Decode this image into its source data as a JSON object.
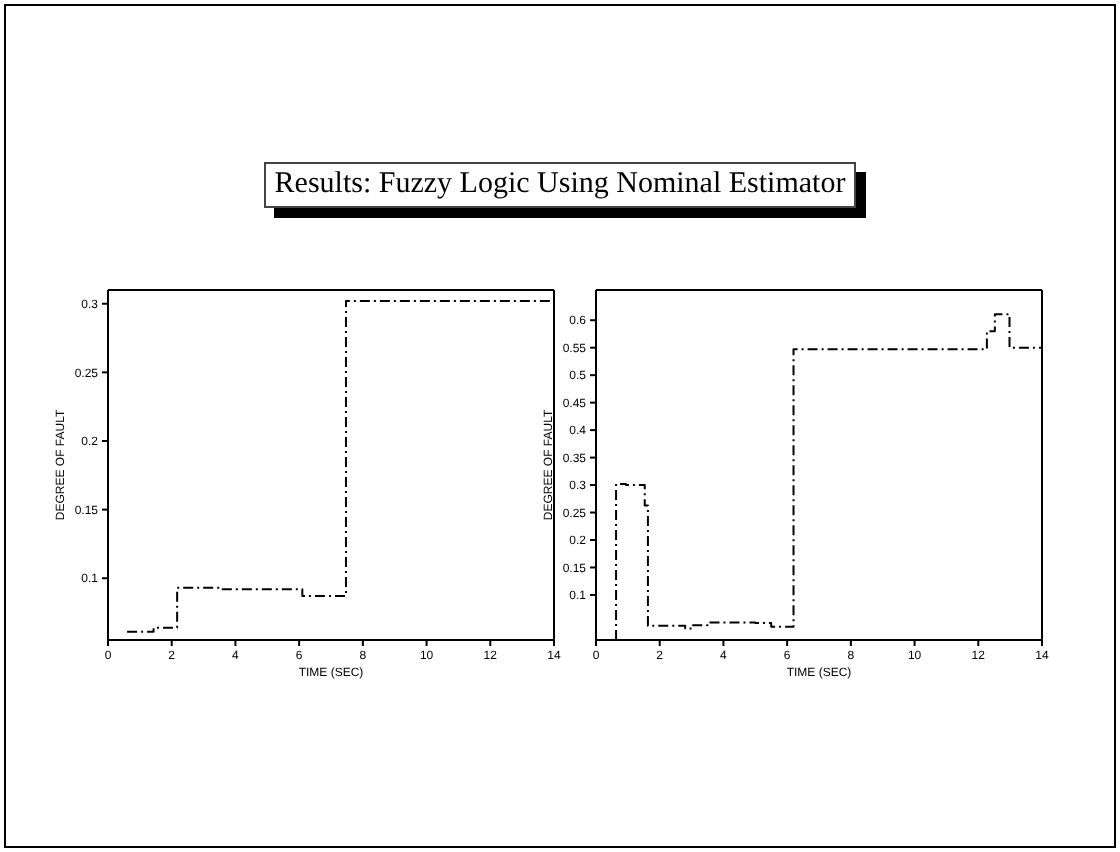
{
  "chart_data": [
    {
      "type": "step",
      "title": "Results: Fuzzy Logic Using Nominal Estimator",
      "xlabel": "TIME (SEC)",
      "ylabel": "DEGREE OF FAULT",
      "xlim": [
        0,
        14
      ],
      "xticks": [
        0,
        2,
        4,
        6,
        8,
        10,
        12,
        14
      ],
      "ylim": [
        0.055,
        0.31
      ],
      "yticks": [
        0.1,
        0.15,
        0.2,
        0.25,
        0.3
      ],
      "line_style": "dashed",
      "marker": "none",
      "series": [
        {
          "color": "#000000",
          "x": [
            0.6,
            1.43,
            2.17,
            3.5,
            6.1,
            7.47,
            14
          ],
          "values": [
            0.061,
            0.064,
            0.093,
            0.092,
            0.087,
            0.302,
            0.302
          ]
        }
      ]
    },
    {
      "type": "step",
      "xlabel": "TIME (SEC)",
      "ylabel": "DEGREE OF FAULT",
      "xlim": [
        0,
        14
      ],
      "xticks": [
        0,
        2,
        4,
        6,
        8,
        10,
        12,
        14
      ],
      "ylim": [
        0.018,
        0.655
      ],
      "yticks": [
        0.1,
        0.15,
        0.2,
        0.25,
        0.3,
        0.35,
        0.4,
        0.45,
        0.5,
        0.55,
        0.6
      ],
      "line_style": "dashed",
      "marker": "none",
      "series": [
        {
          "color": "#000000",
          "x": [
            0.63,
            0.63,
            0.94,
            1.53,
            1.63,
            2.8,
            3.0,
            3.5,
            5.0,
            5.5,
            6.2,
            12.27,
            12.52,
            12.98,
            14
          ],
          "values": [
            0.018,
            0.302,
            0.3,
            0.263,
            0.044,
            0.039,
            0.045,
            0.05,
            0.049,
            0.042,
            0.547,
            0.58,
            0.611,
            0.55,
            0.55
          ]
        }
      ]
    }
  ]
}
